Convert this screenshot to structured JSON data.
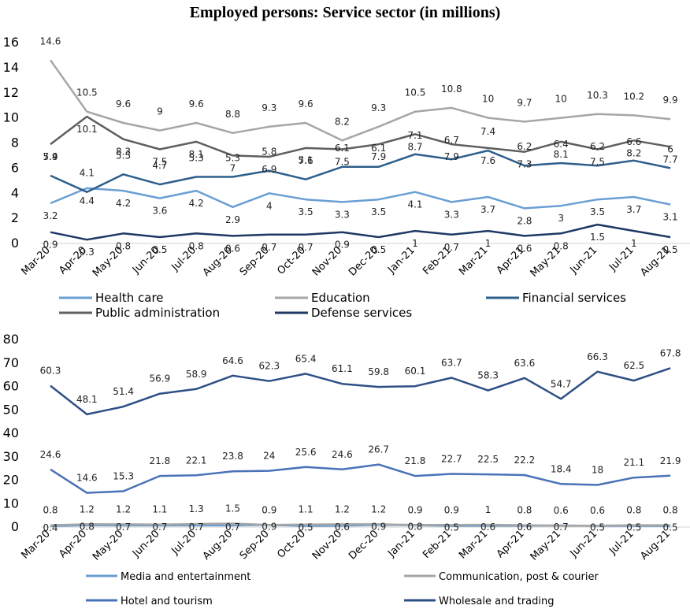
{
  "chart_data": [
    {
      "type": "line",
      "title": "Employed persons: Service sector (in millions)",
      "xlabel": "",
      "ylabel": "",
      "ylim": [
        0,
        16
      ],
      "yticks": [
        0,
        2,
        4,
        6,
        8,
        10,
        12,
        14,
        16
      ],
      "grid": false,
      "legend": "bottom",
      "categories": [
        "Mar-20",
        "Apr-20",
        "May-20",
        "Jun-20",
        "Jul-20",
        "Aug-20",
        "Sep-20",
        "Oct-20",
        "Nov-20",
        "Dec-20",
        "Jan-21",
        "Feb-21",
        "Mar-21",
        "Apr-21",
        "May-21",
        "Jun-21",
        "Jul-21",
        "Aug-21"
      ],
      "series": [
        {
          "name": "Health care",
          "color": "#6a9fd4",
          "values": [
            3.2,
            4.4,
            4.2,
            3.6,
            4.2,
            2.9,
            4,
            3.5,
            3.3,
            3.5,
            4.1,
            3.3,
            3.7,
            2.8,
            3,
            3.5,
            3.7,
            3.1
          ]
        },
        {
          "name": "Education",
          "color": "#a6a6a6",
          "values": [
            14.6,
            10.5,
            9.6,
            9,
            9.6,
            8.8,
            9.3,
            9.6,
            8.2,
            9.3,
            10.5,
            10.8,
            10,
            9.7,
            10,
            10.3,
            10.2,
            9.9
          ]
        },
        {
          "name": "Financial services",
          "color": "#2e5f8c",
          "values": [
            5.4,
            4.1,
            5.5,
            4.7,
            5.3,
            5.3,
            5.8,
            5.1,
            6.1,
            6.1,
            7.1,
            6.7,
            7.4,
            6.2,
            6.4,
            6.2,
            6.6,
            6
          ]
        },
        {
          "name": "Public administration",
          "color": "#5f5f5f",
          "values": [
            7.9,
            10.1,
            8.3,
            7.5,
            8.1,
            7,
            6.9,
            7.6,
            7.5,
            7.9,
            8.7,
            7.9,
            7.6,
            7.3,
            8.1,
            7.5,
            8.2,
            7.7
          ]
        },
        {
          "name": "Defense services",
          "color": "#1f3864",
          "values": [
            0.9,
            0.3,
            0.8,
            0.5,
            0.8,
            0.6,
            0.7,
            0.7,
            0.9,
            0.5,
            1,
            0.7,
            1,
            0.6,
            0.8,
            1.5,
            1,
            0.5
          ]
        }
      ]
    },
    {
      "type": "line",
      "title": "",
      "xlabel": "",
      "ylabel": "",
      "ylim": [
        0,
        80
      ],
      "yticks": [
        0,
        10,
        20,
        30,
        40,
        50,
        60,
        70,
        80
      ],
      "grid": false,
      "legend": "bottom",
      "categories": [
        "Mar-20",
        "Apr-20",
        "May-20",
        "Jun-20",
        "Jul-20",
        "Aug-20",
        "Sep-20",
        "Oct-20",
        "Nov-20",
        "Dec-20",
        "Jan-21",
        "Feb-21",
        "Mar-21",
        "Apr-21",
        "May-21",
        "Jun-21",
        "Jul-21",
        "Aug-21"
      ],
      "series": [
        {
          "name": "Media and entertainment",
          "color": "#6a9fd4",
          "values": [
            0.4,
            0.8,
            0.7,
            0.7,
            0.7,
            0.7,
            0.9,
            0.5,
            0.6,
            0.9,
            0.8,
            0.5,
            0.6,
            0.6,
            0.7,
            0.5,
            0.5,
            0.5
          ]
        },
        {
          "name": "Communication, post  & courier",
          "color": "#a6a6a6",
          "values": [
            0.8,
            1.2,
            1.2,
            1.1,
            1.3,
            1.5,
            0.9,
            1.1,
            1.2,
            1.2,
            0.9,
            0.9,
            1,
            0.8,
            0.6,
            0.6,
            0.8,
            0.8
          ]
        },
        {
          "name": "Hotel and tourism",
          "color": "#4a72b8",
          "values": [
            24.6,
            14.6,
            15.3,
            21.8,
            22.1,
            23.8,
            24,
            25.6,
            24.6,
            26.7,
            21.8,
            22.7,
            22.5,
            22.2,
            18.4,
            18,
            21.1,
            21.9
          ]
        },
        {
          "name": "Wholesale and trading",
          "color": "#2e4f86",
          "values": [
            60.3,
            48.1,
            51.4,
            56.9,
            58.9,
            64.6,
            62.3,
            65.4,
            61.1,
            59.8,
            60.1,
            63.7,
            58.3,
            63.6,
            54.7,
            66.3,
            62.5,
            67.8
          ]
        }
      ]
    }
  ]
}
